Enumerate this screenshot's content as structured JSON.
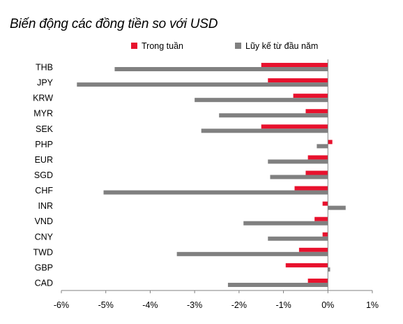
{
  "chart_data": {
    "type": "bar",
    "orientation": "horizontal",
    "title": "Biến động các đồng tiền so với USD",
    "categories": [
      "THB",
      "JPY",
      "KRW",
      "MYR",
      "SEK",
      "PHP",
      "EUR",
      "SGD",
      "CHF",
      "INR",
      "VND",
      "CNY",
      "TWD",
      "GBP",
      "CAD"
    ],
    "series": [
      {
        "name": "Trong tuần",
        "color": "#e8112d",
        "values": [
          -1.5,
          -1.35,
          -0.78,
          -0.5,
          -1.5,
          0.1,
          -0.45,
          -0.5,
          -0.75,
          -0.12,
          -0.3,
          -0.12,
          -0.65,
          -0.95,
          -0.45
        ]
      },
      {
        "name": "Lũy kế từ đầu năm",
        "color": "#808080",
        "values": [
          -4.8,
          -5.65,
          -3.0,
          -2.45,
          -2.85,
          -0.25,
          -1.35,
          -1.3,
          -5.05,
          0.4,
          -1.9,
          -1.35,
          -3.4,
          0.05,
          -2.25
        ]
      }
    ],
    "xlim": [
      -6,
      1
    ],
    "xticks": [
      "-6%",
      "-5%",
      "-4%",
      "-3%",
      "-2%",
      "-1%",
      "0%",
      "1%"
    ],
    "legend_position": "top"
  }
}
